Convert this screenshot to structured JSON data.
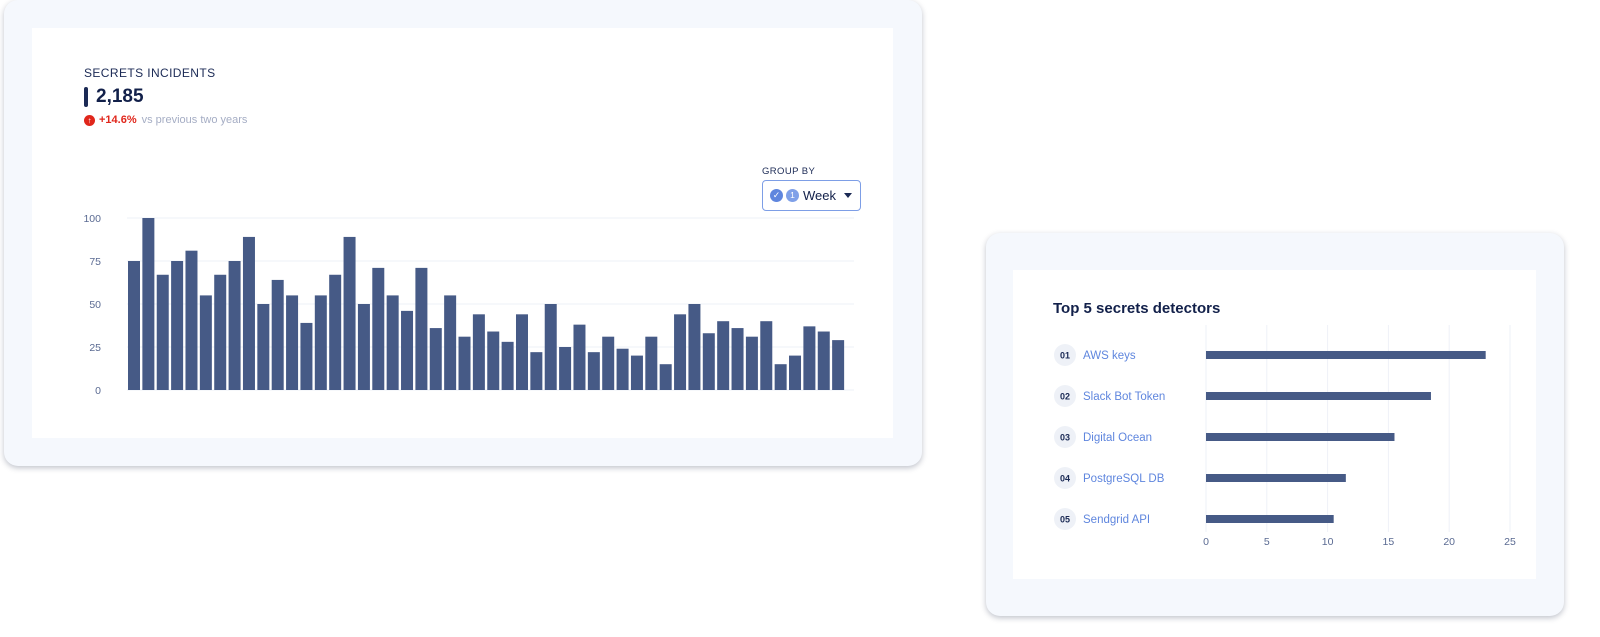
{
  "incidents": {
    "title": "SECRETS INCIDENTS",
    "total": "2,185",
    "delta_value": "+14.6%",
    "delta_text": "vs previous two years",
    "group_by": {
      "label": "GROUP BY",
      "count": "1",
      "value": "Week"
    }
  },
  "detectors": {
    "title": "Top 5 secrets detectors"
  },
  "colors": {
    "bar": "#465a86",
    "accent": "#5f86de",
    "negative": "#e0261b"
  },
  "chart_data": [
    {
      "type": "bar",
      "orientation": "vertical",
      "ylim": [
        0,
        100
      ],
      "yticks": [
        0,
        25,
        50,
        75,
        100
      ],
      "grid": true,
      "values": [
        75,
        100,
        67,
        75,
        81,
        55,
        67,
        75,
        89,
        50,
        64,
        55,
        39,
        55,
        67,
        89,
        50,
        71,
        55,
        46,
        71,
        36,
        55,
        31,
        44,
        34,
        28,
        44,
        22,
        50,
        25,
        38,
        22,
        31,
        24,
        20,
        31,
        15,
        44,
        50,
        33,
        40,
        36,
        31,
        40,
        15,
        20,
        37,
        34,
        29
      ]
    },
    {
      "type": "bar",
      "orientation": "horizontal",
      "ranks": [
        "01",
        "02",
        "03",
        "04",
        "05"
      ],
      "categories": [
        "AWS keys",
        "Slack Bot Token",
        "Digital Ocean",
        "PostgreSQL DB",
        "Sendgrid API"
      ],
      "values": [
        23,
        18.5,
        15.5,
        11.5,
        10.5
      ],
      "xlim": [
        0,
        25
      ],
      "xticks": [
        0,
        5,
        10,
        15,
        20,
        25
      ],
      "grid": true
    }
  ]
}
